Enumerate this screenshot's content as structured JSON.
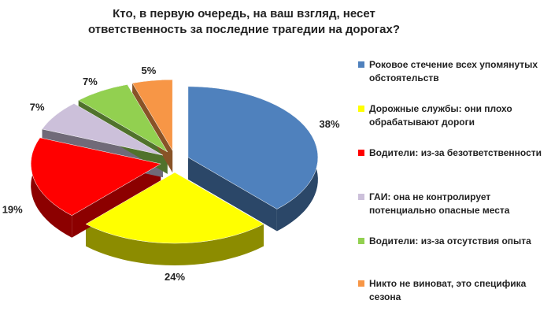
{
  "chart_data": {
    "type": "pie",
    "title": "Кто, в первую очередь, на ваш взгляд, несет ответственность за последние трагедии на дорогах?",
    "categories": [
      "Роковое стечение всех упомянутых обстоятельств",
      "Дорожные службы: они плохо обрабатывают дороги",
      "Водители: из-за безответственности",
      "ГАИ: она не контролирует потенциально опасные места",
      "Водители: из-за отсутствия опыта",
      "Никто не виноват, это специфика сезона"
    ],
    "values": [
      38,
      24,
      19,
      7,
      7,
      5
    ],
    "value_labels": [
      "38%",
      "24%",
      "19%",
      "7%",
      "7%",
      "5%"
    ],
    "colors": [
      "#4f81bd",
      "#ffff00",
      "#ff0000",
      "#ccc0da",
      "#92d050",
      "#f79646"
    ],
    "legend": "right"
  }
}
